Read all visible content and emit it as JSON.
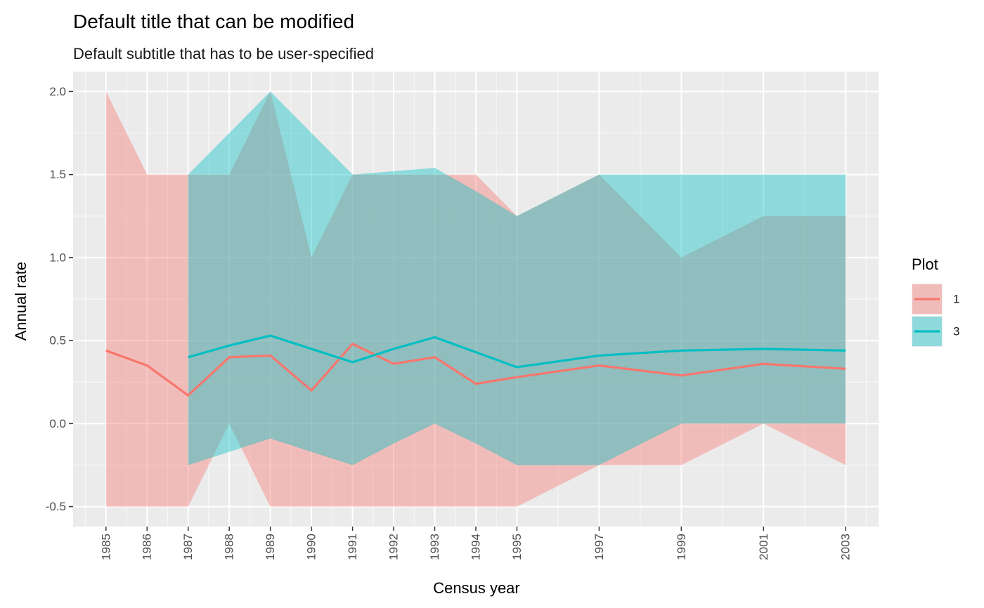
{
  "chart_data": {
    "type": "area",
    "title": "Default title that can be modified",
    "subtitle": "Default subtitle that has to be user-specified",
    "xlabel": "Census year",
    "ylabel": "Annual rate",
    "xlim": [
      1984.2,
      2003.8
    ],
    "ylim": [
      -0.62,
      2.12
    ],
    "x_ticks": [
      1985,
      1986,
      1987,
      1988,
      1989,
      1990,
      1991,
      1992,
      1993,
      1994,
      1995,
      1997,
      1999,
      2001,
      2003
    ],
    "y_ticks": [
      -0.5,
      0.0,
      0.5,
      1.0,
      1.5,
      2.0
    ],
    "y_tick_labels": [
      "-0.5",
      "0.0",
      "0.5",
      "1.0",
      "1.5",
      "2.0"
    ],
    "grid": true,
    "legend": {
      "title": "Plot",
      "position": "right"
    },
    "series": [
      {
        "name": "1",
        "color": "#F8766D",
        "fill_color": "#F8766D",
        "fill_opacity": 0.4,
        "x": [
          1985,
          1986,
          1987,
          1988,
          1989,
          1990,
          1991,
          1992,
          1993,
          1994,
          1995,
          1997,
          1999,
          2001,
          2003
        ],
        "mean": [
          0.44,
          0.35,
          0.17,
          0.4,
          0.41,
          0.2,
          0.48,
          0.36,
          0.4,
          0.24,
          0.28,
          0.35,
          0.29,
          0.36,
          0.33
        ],
        "lower": [
          -0.5,
          -0.5,
          -0.5,
          0.0,
          -0.5,
          -0.5,
          -0.5,
          -0.5,
          -0.5,
          -0.5,
          -0.5,
          -0.25,
          -0.25,
          0.0,
          -0.25
        ],
        "upper": [
          2.0,
          1.5,
          1.5,
          1.5,
          2.0,
          1.0,
          1.5,
          1.5,
          1.5,
          1.5,
          1.25,
          1.5,
          1.0,
          1.25,
          1.25
        ]
      },
      {
        "name": "3",
        "color": "#00BFC4",
        "fill_color": "#00BFC4",
        "fill_opacity": 0.4,
        "x": [
          1987,
          1988,
          1989,
          1990,
          1991,
          1992,
          1993,
          1994,
          1995,
          1997,
          1999,
          2001,
          2003
        ],
        "mean": [
          0.4,
          0.47,
          0.53,
          0.45,
          0.37,
          0.45,
          0.52,
          0.43,
          0.34,
          0.41,
          0.44,
          0.45,
          0.44
        ],
        "lower": [
          -0.25,
          -0.17,
          -0.09,
          -0.17,
          -0.25,
          -0.12,
          0.0,
          -0.12,
          -0.25,
          -0.25,
          0.0,
          0.0,
          0.0
        ],
        "upper": [
          1.5,
          1.75,
          2.0,
          1.75,
          1.5,
          1.52,
          1.54,
          1.4,
          1.25,
          1.5,
          1.5,
          1.5,
          1.5
        ]
      }
    ]
  }
}
